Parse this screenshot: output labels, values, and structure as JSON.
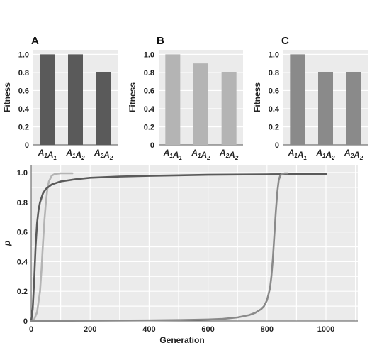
{
  "chart_data": [
    {
      "type": "bar",
      "panel_label": "A",
      "ylabel": "Fitness",
      "ylim": [
        0,
        1.05
      ],
      "yticks": [
        "0",
        "0.2",
        "0.4",
        "0.6",
        "0.8",
        "1.0"
      ],
      "categories": [
        "A1A1",
        "A1A2",
        "A2A2"
      ],
      "values": [
        1.0,
        1.0,
        0.8
      ],
      "bar_color": "#5a5a5a"
    },
    {
      "type": "bar",
      "panel_label": "B",
      "ylabel": "Fitness",
      "ylim": [
        0,
        1.05
      ],
      "yticks": [
        "0",
        "0.2",
        "0.4",
        "0.6",
        "0.8",
        "1.0"
      ],
      "categories": [
        "A1A1",
        "A1A2",
        "A2A2"
      ],
      "values": [
        1.0,
        0.9,
        0.8
      ],
      "bar_color": "#b4b4b4"
    },
    {
      "type": "bar",
      "panel_label": "C",
      "ylabel": "Fitness",
      "ylim": [
        0,
        1.05
      ],
      "yticks": [
        "0",
        "0.2",
        "0.4",
        "0.6",
        "0.8",
        "1.0"
      ],
      "categories": [
        "A1A1",
        "A1A2",
        "A2A2"
      ],
      "values": [
        1.0,
        0.8,
        0.8
      ],
      "bar_color": "#8a8a8a"
    },
    {
      "type": "line",
      "xlabel": "Generation",
      "ylabel": "p",
      "xlim": [
        0,
        1000
      ],
      "ylim": [
        0,
        1.0
      ],
      "xticks": [
        "0",
        "200",
        "400",
        "600",
        "800",
        "1000"
      ],
      "yticks": [
        "0",
        "0.2",
        "0.4",
        "0.6",
        "0.8",
        "1.0"
      ],
      "grid": true,
      "series": [
        {
          "color": "#b4b4b4",
          "x": [
            0,
            10,
            20,
            30,
            35,
            40,
            45,
            50,
            55,
            60,
            70,
            80,
            100,
            140
          ],
          "y": [
            0.0,
            0.01,
            0.06,
            0.2,
            0.35,
            0.52,
            0.68,
            0.8,
            0.89,
            0.94,
            0.98,
            0.99,
            0.995,
            0.995
          ]
        },
        {
          "color": "#5a5a5a",
          "x": [
            0,
            5,
            10,
            15,
            20,
            25,
            30,
            40,
            50,
            70,
            100,
            150,
            200,
            300,
            400,
            600,
            800,
            1000
          ],
          "y": [
            0.0,
            0.08,
            0.27,
            0.5,
            0.66,
            0.75,
            0.8,
            0.86,
            0.89,
            0.92,
            0.94,
            0.955,
            0.965,
            0.973,
            0.978,
            0.985,
            0.988,
            0.99
          ]
        },
        {
          "color": "#8a8a8a",
          "x": [
            0,
            200,
            400,
            500,
            600,
            650,
            700,
            740,
            760,
            780,
            790,
            800,
            810,
            815,
            820,
            825,
            830,
            835,
            840,
            845,
            850,
            860,
            870
          ],
          "y": [
            0.0,
            0.002,
            0.004,
            0.006,
            0.01,
            0.014,
            0.024,
            0.04,
            0.055,
            0.08,
            0.1,
            0.14,
            0.22,
            0.3,
            0.42,
            0.58,
            0.74,
            0.87,
            0.95,
            0.98,
            0.99,
            0.995,
            0.995
          ]
        }
      ]
    }
  ]
}
